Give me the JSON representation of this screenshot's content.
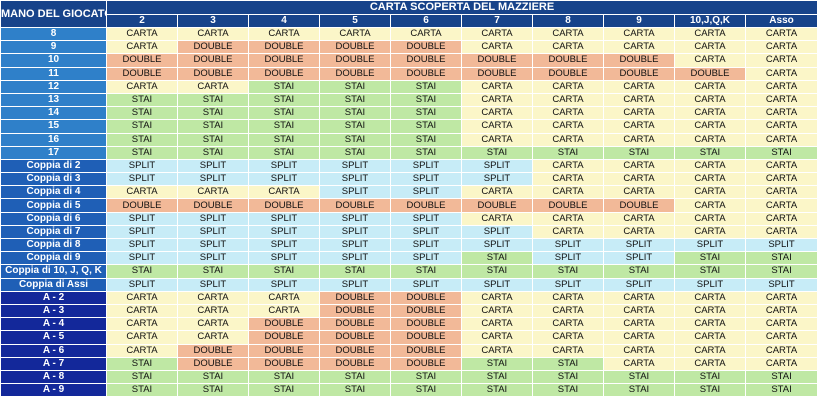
{
  "header": {
    "corner_label": "MANO DEL GIOCATORE",
    "dealer_title": "CARTA SCOPERTA DEL MAZZIERE",
    "dealer_cards": [
      "2",
      "3",
      "4",
      "5",
      "6",
      "7",
      "8",
      "9",
      "10,J,Q,K",
      "Asso"
    ]
  },
  "colors": {
    "header_bg": "#17438a",
    "hard_row_bg": "#2f80c9",
    "pair_row_bg": "#1f5fb6",
    "soft_row_bg": "#13289a",
    "carta": "#fbf6c8",
    "double": "#f2b998",
    "stai": "#bfe8a4",
    "split": "#c7ecf7"
  },
  "rows": [
    {
      "hand": "8",
      "group": "hard",
      "actions": [
        "CARTA",
        "CARTA",
        "CARTA",
        "CARTA",
        "CARTA",
        "CARTA",
        "CARTA",
        "CARTA",
        "CARTA",
        "CARTA"
      ]
    },
    {
      "hand": "9",
      "group": "hard",
      "actions": [
        "CARTA",
        "DOUBLE",
        "DOUBLE",
        "DOUBLE",
        "DOUBLE",
        "CARTA",
        "CARTA",
        "CARTA",
        "CARTA",
        "CARTA"
      ]
    },
    {
      "hand": "10",
      "group": "hard",
      "actions": [
        "DOUBLE",
        "DOUBLE",
        "DOUBLE",
        "DOUBLE",
        "DOUBLE",
        "DOUBLE",
        "DOUBLE",
        "DOUBLE",
        "CARTA",
        "CARTA"
      ]
    },
    {
      "hand": "11",
      "group": "hard",
      "actions": [
        "DOUBLE",
        "DOUBLE",
        "DOUBLE",
        "DOUBLE",
        "DOUBLE",
        "DOUBLE",
        "DOUBLE",
        "DOUBLE",
        "DOUBLE",
        "CARTA"
      ]
    },
    {
      "hand": "12",
      "group": "hard",
      "actions": [
        "CARTA",
        "CARTA",
        "STAI",
        "STAI",
        "STAI",
        "CARTA",
        "CARTA",
        "CARTA",
        "CARTA",
        "CARTA"
      ]
    },
    {
      "hand": "13",
      "group": "hard",
      "actions": [
        "STAI",
        "STAI",
        "STAI",
        "STAI",
        "STAI",
        "CARTA",
        "CARTA",
        "CARTA",
        "CARTA",
        "CARTA"
      ]
    },
    {
      "hand": "14",
      "group": "hard",
      "actions": [
        "STAI",
        "STAI",
        "STAI",
        "STAI",
        "STAI",
        "CARTA",
        "CARTA",
        "CARTA",
        "CARTA",
        "CARTA"
      ]
    },
    {
      "hand": "15",
      "group": "hard",
      "actions": [
        "STAI",
        "STAI",
        "STAI",
        "STAI",
        "STAI",
        "CARTA",
        "CARTA",
        "CARTA",
        "CARTA",
        "CARTA"
      ]
    },
    {
      "hand": "16",
      "group": "hard",
      "actions": [
        "STAI",
        "STAI",
        "STAI",
        "STAI",
        "STAI",
        "CARTA",
        "CARTA",
        "CARTA",
        "CARTA",
        "CARTA"
      ]
    },
    {
      "hand": "17",
      "group": "hard",
      "actions": [
        "STAI",
        "STAI",
        "STAI",
        "STAI",
        "STAI",
        "STAI",
        "STAI",
        "STAI",
        "STAI",
        "STAI"
      ]
    },
    {
      "hand": "Coppia di 2",
      "group": "pair",
      "actions": [
        "SPLIT",
        "SPLIT",
        "SPLIT",
        "SPLIT",
        "SPLIT",
        "SPLIT",
        "CARTA",
        "CARTA",
        "CARTA",
        "CARTA"
      ]
    },
    {
      "hand": "Coppia di 3",
      "group": "pair",
      "actions": [
        "SPLIT",
        "SPLIT",
        "SPLIT",
        "SPLIT",
        "SPLIT",
        "SPLIT",
        "CARTA",
        "CARTA",
        "CARTA",
        "CARTA"
      ]
    },
    {
      "hand": "Coppia di 4",
      "group": "pair",
      "actions": [
        "CARTA",
        "CARTA",
        "CARTA",
        "SPLIT",
        "SPLIT",
        "CARTA",
        "CARTA",
        "CARTA",
        "CARTA",
        "CARTA"
      ]
    },
    {
      "hand": "Coppia di 5",
      "group": "pair",
      "actions": [
        "DOUBLE",
        "DOUBLE",
        "DOUBLE",
        "DOUBLE",
        "DOUBLE",
        "DOUBLE",
        "DOUBLE",
        "DOUBLE",
        "CARTA",
        "CARTA"
      ]
    },
    {
      "hand": "Coppia di 6",
      "group": "pair",
      "actions": [
        "SPLIT",
        "SPLIT",
        "SPLIT",
        "SPLIT",
        "SPLIT",
        "CARTA",
        "CARTA",
        "CARTA",
        "CARTA",
        "CARTA"
      ]
    },
    {
      "hand": "Coppia di 7",
      "group": "pair",
      "actions": [
        "SPLIT",
        "SPLIT",
        "SPLIT",
        "SPLIT",
        "SPLIT",
        "SPLIT",
        "CARTA",
        "CARTA",
        "CARTA",
        "CARTA"
      ]
    },
    {
      "hand": "Coppia di 8",
      "group": "pair",
      "actions": [
        "SPLIT",
        "SPLIT",
        "SPLIT",
        "SPLIT",
        "SPLIT",
        "SPLIT",
        "SPLIT",
        "SPLIT",
        "SPLIT",
        "SPLIT"
      ]
    },
    {
      "hand": "Coppia di 9",
      "group": "pair",
      "actions": [
        "SPLIT",
        "SPLIT",
        "SPLIT",
        "SPLIT",
        "SPLIT",
        "STAI",
        "SPLIT",
        "SPLIT",
        "STAI",
        "STAI"
      ]
    },
    {
      "hand": "Coppia di 10, J, Q, K",
      "group": "pair",
      "actions": [
        "STAI",
        "STAI",
        "STAI",
        "STAI",
        "STAI",
        "STAI",
        "STAI",
        "STAI",
        "STAI",
        "STAI"
      ]
    },
    {
      "hand": "Coppia di Assi",
      "group": "pair",
      "actions": [
        "SPLIT",
        "SPLIT",
        "SPLIT",
        "SPLIT",
        "SPLIT",
        "SPLIT",
        "SPLIT",
        "SPLIT",
        "SPLIT",
        "SPLIT"
      ]
    },
    {
      "hand": "A - 2",
      "group": "soft",
      "actions": [
        "CARTA",
        "CARTA",
        "CARTA",
        "DOUBLE",
        "DOUBLE",
        "CARTA",
        "CARTA",
        "CARTA",
        "CARTA",
        "CARTA"
      ]
    },
    {
      "hand": "A - 3",
      "group": "soft",
      "actions": [
        "CARTA",
        "CARTA",
        "CARTA",
        "DOUBLE",
        "DOUBLE",
        "CARTA",
        "CARTA",
        "CARTA",
        "CARTA",
        "CARTA"
      ]
    },
    {
      "hand": "A - 4",
      "group": "soft",
      "actions": [
        "CARTA",
        "CARTA",
        "DOUBLE",
        "DOUBLE",
        "DOUBLE",
        "CARTA",
        "CARTA",
        "CARTA",
        "CARTA",
        "CARTA"
      ]
    },
    {
      "hand": "A - 5",
      "group": "soft",
      "actions": [
        "CARTA",
        "CARTA",
        "DOUBLE",
        "DOUBLE",
        "DOUBLE",
        "CARTA",
        "CARTA",
        "CARTA",
        "CARTA",
        "CARTA"
      ]
    },
    {
      "hand": "A - 6",
      "group": "soft",
      "actions": [
        "CARTA",
        "DOUBLE",
        "DOUBLE",
        "DOUBLE",
        "DOUBLE",
        "CARTA",
        "CARTA",
        "CARTA",
        "CARTA",
        "CARTA"
      ]
    },
    {
      "hand": "A - 7",
      "group": "soft",
      "actions": [
        "STAI",
        "DOUBLE",
        "DOUBLE",
        "DOUBLE",
        "DOUBLE",
        "STAI",
        "STAI",
        "CARTA",
        "CARTA",
        "CARTA"
      ]
    },
    {
      "hand": "A - 8",
      "group": "soft",
      "actions": [
        "STAI",
        "STAI",
        "STAI",
        "STAI",
        "STAI",
        "STAI",
        "STAI",
        "STAI",
        "STAI",
        "STAI"
      ]
    },
    {
      "hand": "A - 9",
      "group": "soft",
      "actions": [
        "STAI",
        "STAI",
        "STAI",
        "STAI",
        "STAI",
        "STAI",
        "STAI",
        "STAI",
        "STAI",
        "STAI"
      ]
    }
  ]
}
